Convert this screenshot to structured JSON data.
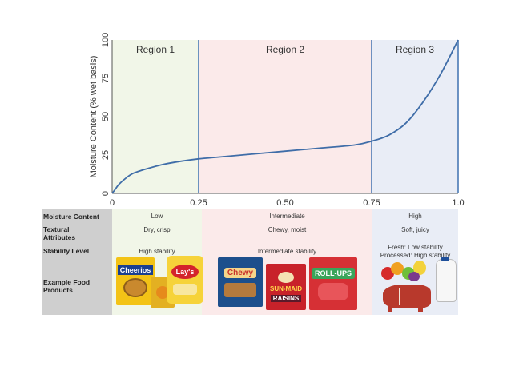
{
  "chart_data": {
    "type": "line",
    "ylabel": "Moisture Content (% wet basis)",
    "x_ticks": [
      "0",
      "0.25",
      "0.50",
      "0.75",
      "1.0"
    ],
    "y_ticks": [
      "0",
      "25",
      "50",
      "75",
      "100"
    ],
    "xlim": [
      0,
      1.0
    ],
    "ylim": [
      0,
      100
    ],
    "regions": [
      {
        "name": "Region 1",
        "from": 0,
        "to": 0.25,
        "color": "#f1f6e8"
      },
      {
        "name": "Region 2",
        "from": 0.25,
        "to": 0.75,
        "color": "#fbeaea"
      },
      {
        "name": "Region 3",
        "from": 0.75,
        "to": 1.0,
        "color": "#e9edf6"
      }
    ],
    "series": [
      {
        "color": "#3f6da8",
        "x": [
          0,
          0.01,
          0.02,
          0.04,
          0.06,
          0.1,
          0.15,
          0.2,
          0.25,
          0.3,
          0.4,
          0.5,
          0.6,
          0.7,
          0.75,
          0.8,
          0.85,
          0.9,
          0.95,
          1.0
        ],
        "y": [
          0,
          3,
          6,
          10,
          13,
          16,
          19,
          21,
          22.5,
          23.5,
          25.5,
          27.5,
          29.5,
          31.5,
          34,
          38,
          46,
          60,
          78,
          100
        ]
      }
    ],
    "boundary_color": "#4a7ab5"
  },
  "table": {
    "labels": {
      "moisture": "Moisture Content",
      "texture": "Textural Attributes",
      "stability": "Stability Level",
      "products": "Example Food Products"
    },
    "region1": {
      "moisture": "Low",
      "texture": "Dry, crisp",
      "stability": "High stability"
    },
    "region2": {
      "moisture": "Intermediate",
      "texture": "Chewy, moist",
      "stability": "Intermediate stability"
    },
    "region3": {
      "moisture": "High",
      "texture": "Soft, juicy",
      "stability_1": "Fresh: Low stability",
      "stability_2": "Processed: High stability"
    }
  },
  "products": {
    "cheerios": "Cheerios",
    "lays": "Lay's",
    "chewy": "Chewy",
    "sunmaid": "SUN-MAID",
    "raisins": "RAISINS",
    "rollups": "ROLL-UPS"
  }
}
